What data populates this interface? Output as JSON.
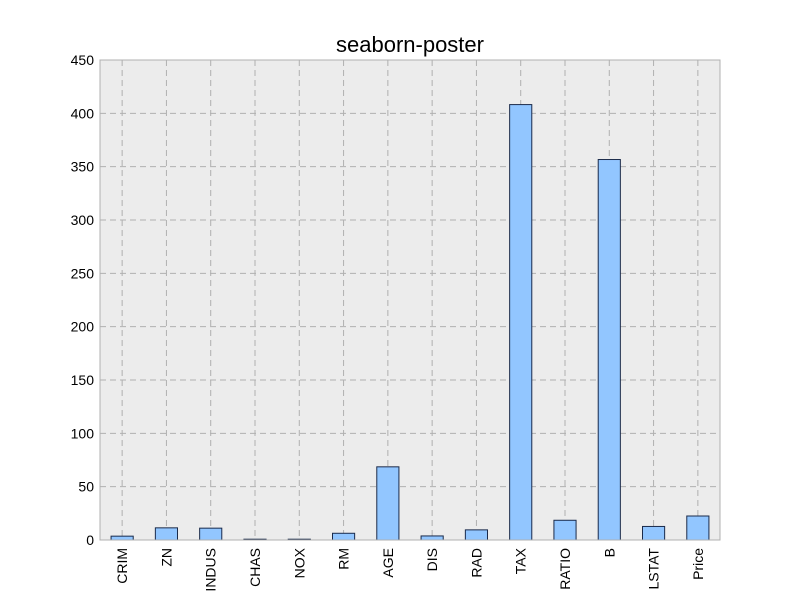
{
  "chart_data": {
    "type": "bar",
    "title": "seaborn-poster",
    "xlabel": "",
    "ylabel": "",
    "categories": [
      "CRIM",
      "ZN",
      "INDUS",
      "CHAS",
      "NOX",
      "RM",
      "AGE",
      "DIS",
      "RAD",
      "TAX",
      "RATIO",
      "B",
      "LSTAT",
      "Price"
    ],
    "values": [
      3.6,
      11.4,
      11.1,
      0.07,
      0.55,
      6.3,
      68.6,
      3.8,
      9.5,
      408.2,
      18.5,
      356.7,
      12.7,
      22.5
    ],
    "ylim": [
      0,
      450
    ],
    "yticks": [
      0,
      50,
      100,
      150,
      200,
      250,
      300,
      350,
      400,
      450
    ],
    "grid": true,
    "legend": "none",
    "colors": {
      "bar_fill": "#92c6ff",
      "bar_edge": "#1a2a4a",
      "plot_background": "#ececec",
      "grid": "#b0b0b0"
    }
  }
}
